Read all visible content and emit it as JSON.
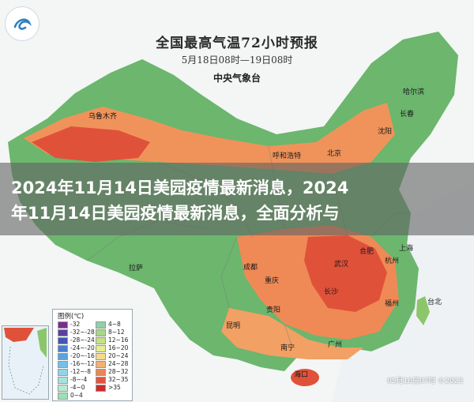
{
  "map": {
    "title": "全国最高气温72小时预报",
    "period": "5月18日08时—19日08时",
    "issuer": "中央气象台",
    "timestamp": "05月16日07时 ©2023"
  },
  "headline": {
    "line1": "2024年11月14日美园疫情最新消息，2024",
    "line2": "年11月14日美园疫情最新消息，全面分析与"
  },
  "cities": {
    "wulumuqi": "乌鲁木齐",
    "huhehaote": "呼和浩特",
    "beijing": "北京",
    "harbin": "哈尔滨",
    "changchun": "长春",
    "shenyang": "沈阳",
    "lasa": "拉萨",
    "chengdu": "成都",
    "chongqing": "重庆",
    "wuhan": "武汉",
    "hefei": "合肥",
    "shanghai": "上海",
    "hangzhou": "杭州",
    "changsha": "长沙",
    "fuzhou": "福州",
    "guiyang": "贵阳",
    "kunming": "昆明",
    "nanning": "南宁",
    "guangzhou": "广州",
    "haikou": "海口",
    "taibei": "台北"
  },
  "legend": {
    "title": "图例(℃)",
    "items": [
      {
        "label": "-32",
        "color": "#7b2d8e"
      },
      {
        "label": "4~8",
        "color": "#8fd0a8"
      },
      {
        "label": "-32~-28",
        "color": "#5a3fa0"
      },
      {
        "label": "8~12",
        "color": "#a6d88a"
      },
      {
        "label": "-28~-24",
        "color": "#3f56b5"
      },
      {
        "label": "12~16",
        "color": "#c4e283"
      },
      {
        "label": "-24~-20",
        "color": "#4a7fd0"
      },
      {
        "label": "16~20",
        "color": "#e7ee90"
      },
      {
        "label": "-20~-16",
        "color": "#5aa3e0"
      },
      {
        "label": "20~24",
        "color": "#f6d98a"
      },
      {
        "label": "-16~-12",
        "color": "#76bfe8"
      },
      {
        "label": "24~28",
        "color": "#f3b070"
      },
      {
        "label": "-12~-8",
        "color": "#8fd5ea"
      },
      {
        "label": "28~32",
        "color": "#ee8456"
      },
      {
        "label": "-8~-4",
        "color": "#a6e2e0"
      },
      {
        "label": "32~35",
        "color": "#e4533c"
      },
      {
        "label": "-4~0",
        "color": "#b7ead0"
      },
      {
        "label": ">35",
        "color": "#cf2a26"
      },
      {
        "label": "0~4",
        "color": "#9adfb8"
      }
    ]
  },
  "colors": {
    "hot": "#e0513a",
    "warm": "#f0935a",
    "mild": "#8cc66a",
    "cool": "#5fb06a",
    "sea": "#eef3f6"
  }
}
